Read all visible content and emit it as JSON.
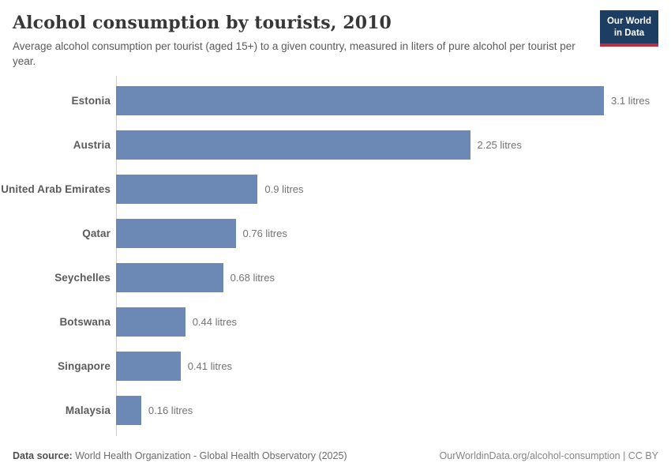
{
  "header": {
    "title": "Alcohol consumption by tourists, 2010",
    "subtitle": "Average alcohol consumption per tourist (aged 15+) to a given country, measured in liters of pure alcohol per tourist per year.",
    "logo_line1": "Our World",
    "logo_line2": "in Data",
    "logo_bg_color": "#1d3d63",
    "logo_accent_color": "#be2d3c"
  },
  "chart_data": {
    "type": "bar",
    "orientation": "horizontal",
    "title": "Alcohol consumption by tourists, 2010",
    "subtitle": "Average alcohol consumption per tourist (aged 15+) to a given country, measured in liters of pure alcohol per tourist per year.",
    "categories": [
      "Estonia",
      "Austria",
      "United Arab Emirates",
      "Qatar",
      "Seychelles",
      "Botswana",
      "Singapore",
      "Malaysia"
    ],
    "values": [
      3.1,
      2.25,
      0.9,
      0.76,
      0.68,
      0.44,
      0.41,
      0.16
    ],
    "value_labels": [
      "3.1 litres",
      "2.25 litres",
      "0.9 litres",
      "0.76 litres",
      "0.68 litres",
      "0.44 litres",
      "0.41 litres",
      "0.16 litres"
    ],
    "unit": "litres",
    "xlim": [
      0,
      3.1
    ],
    "xlabel": "",
    "ylabel": "",
    "grid": false,
    "legend": false,
    "bar_color": "#6b89b4",
    "axis_color": "#cccccc"
  },
  "footer": {
    "data_source_label": "Data source:",
    "data_source_text": " World Health Organization - Global Health Observatory (2025)",
    "url": "OurWorldinData.org/alcohol-consumption",
    "separator": " | ",
    "license": "CC BY"
  }
}
